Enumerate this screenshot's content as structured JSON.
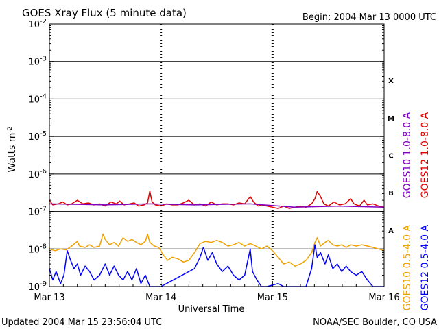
{
  "chart_data": {
    "type": "line",
    "title": "GOES Xray Flux (5 minute data)",
    "begin_label": "Begin:  2004 Mar 13 0000 UTC",
    "xlabel": "Universal Time",
    "ylabel": "Watts m",
    "ylabel_sup": "-2",
    "y_scale": "log",
    "ylim": [
      1e-09,
      0.01
    ],
    "x_range_days": [
      0,
      3
    ],
    "x_ticks": [
      {
        "day": 0,
        "label": "Mar 13"
      },
      {
        "day": 1,
        "label": "Mar 14"
      },
      {
        "day": 2,
        "label": "Mar 15"
      },
      {
        "day": 3,
        "label": "Mar 16"
      }
    ],
    "y_ticks": [
      {
        "exp": -9,
        "label": "10",
        "sup": "-9"
      },
      {
        "exp": -8,
        "label": "10",
        "sup": "-8"
      },
      {
        "exp": -7,
        "label": "10",
        "sup": "-7"
      },
      {
        "exp": -6,
        "label": "10",
        "sup": "-6"
      },
      {
        "exp": -5,
        "label": "10",
        "sup": "-5"
      },
      {
        "exp": -4,
        "label": "10",
        "sup": "-4"
      },
      {
        "exp": -3,
        "label": "10",
        "sup": "-3"
      },
      {
        "exp": -2,
        "label": "10",
        "sup": "-2"
      }
    ],
    "flare_classes": [
      {
        "label": "A",
        "exp": -7.5
      },
      {
        "label": "B",
        "exp": -6.5
      },
      {
        "label": "C",
        "exp": -5.5
      },
      {
        "label": "M",
        "exp": -4.5
      },
      {
        "label": "X",
        "exp": -3.5
      }
    ],
    "legend": [
      {
        "name": "GOES10 1.0-8.0 A",
        "color": "#8000c0",
        "group": "long"
      },
      {
        "name": "GOES12 1.0-8.0 A",
        "color": "#e00000",
        "group": "long"
      },
      {
        "name": "GOES10 0.5-4.0 A",
        "color": "#f0a000",
        "group": "short"
      },
      {
        "name": "GOES12 0.5-4.0 A",
        "color": "#0000ff",
        "group": "short"
      }
    ],
    "grid": "horizontal lines at each decade; dashed vertical day markers",
    "series": [
      {
        "name": "GOES12 1.0-8.0 A",
        "color": "#e00000",
        "points": [
          [
            0,
            2e-07
          ],
          [
            0.03,
            1.5e-07
          ],
          [
            0.08,
            1.6e-07
          ],
          [
            0.12,
            1.8e-07
          ],
          [
            0.16,
            1.5e-07
          ],
          [
            0.2,
            1.6e-07
          ],
          [
            0.25,
            2e-07
          ],
          [
            0.3,
            1.6e-07
          ],
          [
            0.35,
            1.7e-07
          ],
          [
            0.4,
            1.5e-07
          ],
          [
            0.45,
            1.6e-07
          ],
          [
            0.5,
            1.4e-07
          ],
          [
            0.55,
            1.8e-07
          ],
          [
            0.6,
            1.6e-07
          ],
          [
            0.63,
            1.9e-07
          ],
          [
            0.67,
            1.5e-07
          ],
          [
            0.72,
            1.6e-07
          ],
          [
            0.76,
            1.7e-07
          ],
          [
            0.8,
            1.4e-07
          ],
          [
            0.85,
            1.5e-07
          ],
          [
            0.88,
            1.7e-07
          ],
          [
            0.9,
            3.5e-07
          ],
          [
            0.92,
            1.8e-07
          ],
          [
            0.95,
            1.5e-07
          ],
          [
            1.0,
            1.4e-07
          ],
          [
            1.05,
            1.6e-07
          ],
          [
            1.1,
            1.5e-07
          ],
          [
            1.15,
            1.5e-07
          ],
          [
            1.2,
            1.7e-07
          ],
          [
            1.25,
            2e-07
          ],
          [
            1.3,
            1.5e-07
          ],
          [
            1.35,
            1.6e-07
          ],
          [
            1.4,
            1.4e-07
          ],
          [
            1.45,
            1.8e-07
          ],
          [
            1.5,
            1.5e-07
          ],
          [
            1.55,
            1.6e-07
          ],
          [
            1.6,
            1.6e-07
          ],
          [
            1.65,
            1.5e-07
          ],
          [
            1.7,
            1.7e-07
          ],
          [
            1.75,
            1.6e-07
          ],
          [
            1.8,
            2.5e-07
          ],
          [
            1.83,
            1.8e-07
          ],
          [
            1.87,
            1.4e-07
          ],
          [
            1.9,
            1.5e-07
          ],
          [
            1.95,
            1.4e-07
          ],
          [
            2.0,
            1.3e-07
          ],
          [
            2.05,
            1.2e-07
          ],
          [
            2.1,
            1.4e-07
          ],
          [
            2.15,
            1.2e-07
          ],
          [
            2.2,
            1.3e-07
          ],
          [
            2.25,
            1.4e-07
          ],
          [
            2.3,
            1.3e-07
          ],
          [
            2.35,
            1.6e-07
          ],
          [
            2.38,
            2.2e-07
          ],
          [
            2.4,
            3.4e-07
          ],
          [
            2.43,
            2.5e-07
          ],
          [
            2.46,
            1.6e-07
          ],
          [
            2.5,
            1.4e-07
          ],
          [
            2.55,
            1.8e-07
          ],
          [
            2.6,
            1.5e-07
          ],
          [
            2.65,
            1.6e-07
          ],
          [
            2.7,
            2.2e-07
          ],
          [
            2.73,
            1.6e-07
          ],
          [
            2.78,
            1.4e-07
          ],
          [
            2.82,
            2e-07
          ],
          [
            2.85,
            1.5e-07
          ],
          [
            2.9,
            1.6e-07
          ],
          [
            2.95,
            1.4e-07
          ],
          [
            3.0,
            1.3e-07
          ]
        ]
      },
      {
        "name": "GOES10 1.0-8.0 A",
        "color": "#8000c0",
        "points": [
          [
            0.0,
            1.6e-07
          ],
          [
            0.5,
            1.5e-07
          ],
          [
            0.9,
            1.6e-07
          ],
          [
            1.3,
            1.5e-07
          ],
          [
            1.8,
            1.6e-07
          ],
          [
            2.2,
            1.3e-07
          ],
          [
            2.6,
            1.4e-07
          ],
          [
            3.0,
            1.3e-07
          ]
        ]
      },
      {
        "name": "GOES10 0.5-4.0 A",
        "color": "#f0a000",
        "points": [
          [
            0,
            1e-08
          ],
          [
            0.05,
            9e-09
          ],
          [
            0.1,
            1e-08
          ],
          [
            0.15,
            9.5e-09
          ],
          [
            0.2,
            1.2e-08
          ],
          [
            0.25,
            1.6e-08
          ],
          [
            0.27,
            1.2e-08
          ],
          [
            0.32,
            1.1e-08
          ],
          [
            0.36,
            1.3e-08
          ],
          [
            0.4,
            1.1e-08
          ],
          [
            0.45,
            1.2e-08
          ],
          [
            0.48,
            2.5e-08
          ],
          [
            0.5,
            1.8e-08
          ],
          [
            0.54,
            1.3e-08
          ],
          [
            0.58,
            1.5e-08
          ],
          [
            0.62,
            1.2e-08
          ],
          [
            0.66,
            2e-08
          ],
          [
            0.7,
            1.6e-08
          ],
          [
            0.74,
            1.8e-08
          ],
          [
            0.78,
            1.5e-08
          ],
          [
            0.82,
            1.3e-08
          ],
          [
            0.86,
            1.6e-08
          ],
          [
            0.88,
            2.5e-08
          ],
          [
            0.9,
            1.5e-08
          ],
          [
            0.94,
            1.2e-08
          ],
          [
            0.98,
            1.1e-08
          ],
          [
            1.02,
            7e-09
          ],
          [
            1.06,
            5e-09
          ],
          [
            1.1,
            6e-09
          ],
          [
            1.15,
            5.5e-09
          ],
          [
            1.2,
            4.5e-09
          ],
          [
            1.25,
            5e-09
          ],
          [
            1.3,
            8e-09
          ],
          [
            1.35,
            1.4e-08
          ],
          [
            1.4,
            1.6e-08
          ],
          [
            1.45,
            1.5e-08
          ],
          [
            1.5,
            1.7e-08
          ],
          [
            1.55,
            1.5e-08
          ],
          [
            1.6,
            1.2e-08
          ],
          [
            1.65,
            1.3e-08
          ],
          [
            1.7,
            1.5e-08
          ],
          [
            1.75,
            1.2e-08
          ],
          [
            1.8,
            1.4e-08
          ],
          [
            1.85,
            1.2e-08
          ],
          [
            1.9,
            1e-08
          ],
          [
            1.95,
            1.2e-08
          ],
          [
            2.0,
            9e-09
          ],
          [
            2.05,
            6e-09
          ],
          [
            2.1,
            4e-09
          ],
          [
            2.15,
            4.5e-09
          ],
          [
            2.2,
            3.5e-09
          ],
          [
            2.25,
            4e-09
          ],
          [
            2.3,
            5e-09
          ],
          [
            2.35,
            8e-09
          ],
          [
            2.38,
            1.5e-08
          ],
          [
            2.4,
            2e-08
          ],
          [
            2.43,
            1.2e-08
          ],
          [
            2.47,
            1.5e-08
          ],
          [
            2.5,
            1.7e-08
          ],
          [
            2.54,
            1.3e-08
          ],
          [
            2.58,
            1.2e-08
          ],
          [
            2.62,
            1.3e-08
          ],
          [
            2.66,
            1.1e-08
          ],
          [
            2.7,
            1.3e-08
          ],
          [
            2.75,
            1.2e-08
          ],
          [
            2.8,
            1.3e-08
          ],
          [
            2.85,
            1.2e-08
          ],
          [
            2.9,
            1.1e-08
          ],
          [
            2.95,
            1e-08
          ],
          [
            3.0,
            9e-09
          ]
        ]
      },
      {
        "name": "GOES12 0.5-4.0 A",
        "color": "#0000ff",
        "points": [
          [
            0.0,
            3e-09
          ],
          [
            0.03,
            1.5e-09
          ],
          [
            0.06,
            2.5e-09
          ],
          [
            0.1,
            1.2e-09
          ],
          [
            0.13,
            2e-09
          ],
          [
            0.16,
            9e-09
          ],
          [
            0.19,
            5e-09
          ],
          [
            0.22,
            3e-09
          ],
          [
            0.25,
            4e-09
          ],
          [
            0.28,
            2e-09
          ],
          [
            0.32,
            3.5e-09
          ],
          [
            0.36,
            2.5e-09
          ],
          [
            0.4,
            1.5e-09
          ],
          [
            0.45,
            2e-09
          ],
          [
            0.5,
            4e-09
          ],
          [
            0.54,
            2e-09
          ],
          [
            0.58,
            3.5e-09
          ],
          [
            0.62,
            2e-09
          ],
          [
            0.66,
            1.5e-09
          ],
          [
            0.7,
            2.5e-09
          ],
          [
            0.74,
            1.5e-09
          ],
          [
            0.78,
            3e-09
          ],
          [
            0.82,
            1.2e-09
          ],
          [
            0.86,
            2e-09
          ],
          [
            0.9,
            1e-09
          ],
          [
            0.95,
            1e-09
          ],
          [
            1.0,
            1e-09
          ],
          [
            1.3,
            3e-09
          ],
          [
            1.35,
            6e-09
          ],
          [
            1.38,
            1.1e-08
          ],
          [
            1.42,
            5e-09
          ],
          [
            1.46,
            8e-09
          ],
          [
            1.5,
            4e-09
          ],
          [
            1.55,
            2.5e-09
          ],
          [
            1.6,
            3.5e-09
          ],
          [
            1.65,
            2e-09
          ],
          [
            1.7,
            1.5e-09
          ],
          [
            1.75,
            2e-09
          ],
          [
            1.8,
            1e-08
          ],
          [
            1.82,
            2.5e-09
          ],
          [
            1.86,
            1.5e-09
          ],
          [
            1.9,
            1e-09
          ],
          [
            1.95,
            1e-09
          ],
          [
            2.05,
            1.2e-09
          ],
          [
            2.1,
            1e-09
          ],
          [
            2.15,
            1e-09
          ],
          [
            2.3,
            1e-09
          ],
          [
            2.35,
            3e-09
          ],
          [
            2.38,
            1.3e-08
          ],
          [
            2.4,
            6e-09
          ],
          [
            2.43,
            8e-09
          ],
          [
            2.47,
            4e-09
          ],
          [
            2.5,
            7e-09
          ],
          [
            2.54,
            3e-09
          ],
          [
            2.58,
            4e-09
          ],
          [
            2.62,
            2.5e-09
          ],
          [
            2.66,
            3.5e-09
          ],
          [
            2.7,
            2.5e-09
          ],
          [
            2.75,
            2e-09
          ],
          [
            2.8,
            2.5e-09
          ],
          [
            2.85,
            1.5e-09
          ],
          [
            2.9,
            1e-09
          ],
          [
            2.95,
            1e-09
          ],
          [
            3.0,
            1e-09
          ]
        ]
      }
    ]
  },
  "footer": {
    "updated": "Updated 2004 Mar 15 23:56:04 UTC",
    "source": "NOAA/SEC Boulder, CO USA"
  }
}
